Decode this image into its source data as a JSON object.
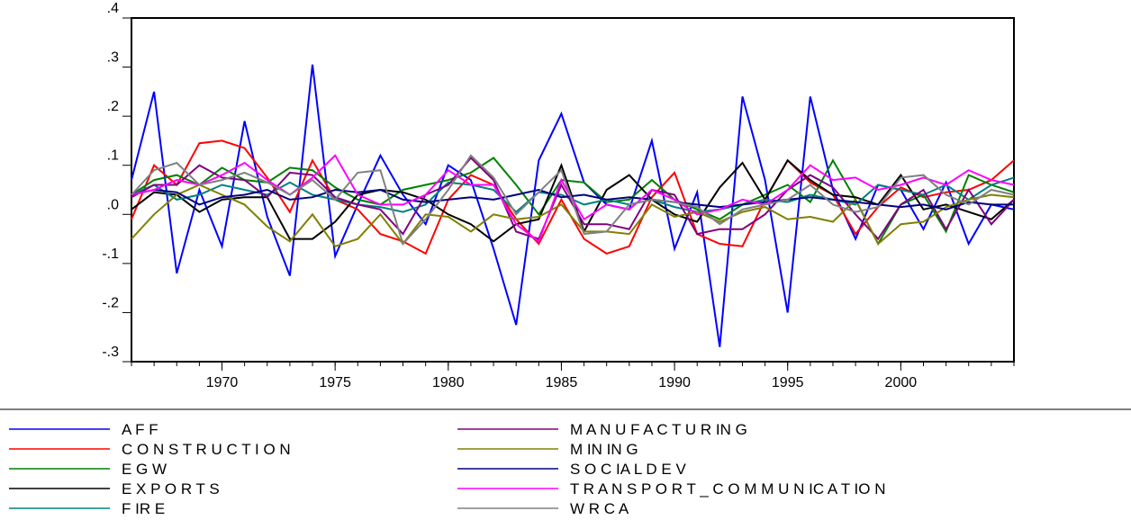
{
  "chart_data": {
    "type": "line",
    "title": "",
    "xlabel": "",
    "ylabel": "",
    "xlim": [
      1966,
      2005
    ],
    "ylim": [
      -0.3,
      0.4
    ],
    "y_ticks": [
      {
        "value": 0.4,
        "label": ".4"
      },
      {
        "value": 0.3,
        "label": ".3"
      },
      {
        "value": 0.2,
        "label": ".2"
      },
      {
        "value": 0.1,
        "label": ".1"
      },
      {
        "value": 0.0,
        "label": ".0"
      },
      {
        "value": -0.1,
        "label": "-.1"
      },
      {
        "value": -0.2,
        "label": "-.2"
      },
      {
        "value": -0.3,
        "label": "-.3"
      }
    ],
    "x_ticks": [
      {
        "value": 1970,
        "label": "1970"
      },
      {
        "value": 1975,
        "label": "1975"
      },
      {
        "value": 1980,
        "label": "1980"
      },
      {
        "value": 1985,
        "label": "1985"
      },
      {
        "value": 1990,
        "label": "1990"
      },
      {
        "value": 1995,
        "label": "1995"
      },
      {
        "value": 2000,
        "label": "2000"
      }
    ],
    "grid": false,
    "legend_position": "bottom",
    "legend_columns": 2,
    "x": [
      1966,
      1967,
      1968,
      1969,
      1970,
      1971,
      1972,
      1973,
      1974,
      1975,
      1976,
      1977,
      1978,
      1979,
      1980,
      1981,
      1982,
      1983,
      1984,
      1985,
      1986,
      1987,
      1988,
      1989,
      1990,
      1991,
      1992,
      1993,
      1994,
      1995,
      1996,
      1997,
      1998,
      1999,
      2000,
      2001,
      2002,
      2003,
      2004,
      2005
    ],
    "series": [
      {
        "name": "A F F",
        "color": "#0000ff",
        "values": [
          0.07,
          0.25,
          -0.12,
          0.05,
          -0.065,
          0.19,
          -0.005,
          -0.125,
          0.305,
          -0.085,
          0.02,
          0.12,
          0.04,
          -0.02,
          0.1,
          0.07,
          -0.07,
          -0.225,
          0.11,
          0.205,
          0.065,
          0.02,
          0.01,
          0.15,
          -0.07,
          0.045,
          -0.27,
          0.24,
          0.07,
          -0.2,
          0.24,
          0.05,
          -0.05,
          0.06,
          0.05,
          -0.03,
          0.065,
          -0.06,
          0.02,
          0.01
        ]
      },
      {
        "name": "C O N S T R U C T I O N",
        "color": "#ff0000",
        "values": [
          -0.01,
          0.1,
          0.06,
          0.145,
          0.15,
          0.135,
          0.075,
          0.005,
          0.11,
          0.03,
          0.01,
          -0.04,
          -0.055,
          -0.08,
          0.03,
          0.08,
          0.06,
          -0.01,
          -0.06,
          0.03,
          -0.05,
          -0.08,
          -0.065,
          0.035,
          0.085,
          -0.04,
          -0.06,
          -0.065,
          0.03,
          0.11,
          0.065,
          0.04,
          -0.04,
          0.015,
          0.055,
          0.035,
          0.045,
          0.05,
          0.07,
          0.11
        ]
      },
      {
        "name": "E G W",
        "color": "#008000",
        "values": [
          0.04,
          0.07,
          0.08,
          0.06,
          0.095,
          0.07,
          0.065,
          0.095,
          0.09,
          0.055,
          0.03,
          0.02,
          0.05,
          0.06,
          0.07,
          0.085,
          0.115,
          0.06,
          0.0,
          0.07,
          0.065,
          0.025,
          0.03,
          0.07,
          0.03,
          0.01,
          -0.01,
          0.02,
          0.04,
          0.06,
          0.025,
          0.11,
          0.03,
          -0.06,
          0.02,
          0.04,
          -0.035,
          0.08,
          0.06,
          0.045
        ]
      },
      {
        "name": "E X P O R T S",
        "color": "#000000",
        "values": [
          0.01,
          0.045,
          0.04,
          0.005,
          0.03,
          0.035,
          0.035,
          -0.05,
          -0.05,
          -0.015,
          0.04,
          0.05,
          0.045,
          0.03,
          0.0,
          -0.02,
          -0.055,
          -0.02,
          -0.01,
          0.1,
          -0.035,
          0.05,
          0.08,
          0.03,
          0.0,
          -0.015,
          0.055,
          0.105,
          0.03,
          0.11,
          0.07,
          0.04,
          0.035,
          0.02,
          0.08,
          0.01,
          0.02,
          0.005,
          -0.01,
          0.03
        ]
      },
      {
        "name": "F IR E",
        "color": "#008080",
        "values": [
          0.04,
          0.06,
          0.03,
          0.04,
          0.06,
          0.05,
          0.04,
          0.065,
          0.04,
          0.03,
          0.02,
          0.015,
          0.005,
          0.02,
          0.065,
          0.06,
          0.05,
          0.005,
          0.045,
          0.04,
          0.02,
          0.03,
          0.02,
          0.03,
          0.015,
          0.005,
          0.01,
          0.02,
          0.03,
          0.025,
          0.04,
          0.03,
          0.02,
          0.06,
          0.05,
          0.04,
          0.06,
          0.03,
          0.06,
          0.075
        ]
      },
      {
        "name": "M A N U F A C T U R IN G",
        "color": "#800080",
        "values": [
          0.035,
          0.06,
          0.06,
          0.1,
          0.075,
          0.07,
          0.035,
          0.085,
          0.08,
          0.035,
          0.02,
          0.01,
          -0.04,
          0.04,
          0.06,
          0.115,
          0.07,
          -0.035,
          -0.05,
          0.06,
          -0.02,
          -0.02,
          -0.03,
          0.05,
          0.04,
          -0.04,
          -0.03,
          -0.03,
          0.0,
          0.05,
          0.08,
          0.055,
          0.0,
          -0.05,
          0.02,
          0.05,
          -0.03,
          0.05,
          -0.02,
          0.03
        ]
      },
      {
        "name": "M IN IN G",
        "color": "#808000",
        "values": [
          -0.05,
          0.0,
          0.04,
          0.06,
          0.04,
          0.02,
          -0.025,
          -0.055,
          0.0,
          -0.065,
          -0.05,
          0.0,
          -0.06,
          0.0,
          -0.005,
          -0.035,
          0.0,
          -0.01,
          -0.005,
          0.02,
          -0.035,
          -0.035,
          -0.04,
          0.02,
          -0.005,
          0.005,
          -0.015,
          0.005,
          0.015,
          -0.01,
          -0.005,
          -0.015,
          0.03,
          -0.06,
          -0.02,
          -0.015,
          0.015,
          0.03,
          0.04,
          0.035
        ]
      },
      {
        "name": "S O C IA L D E V",
        "color": "#000080",
        "values": [
          0.04,
          0.05,
          0.045,
          0.02,
          0.035,
          0.04,
          0.05,
          0.03,
          0.035,
          0.05,
          0.045,
          0.05,
          0.03,
          0.025,
          0.03,
          0.035,
          0.03,
          0.04,
          0.05,
          0.035,
          0.04,
          0.03,
          0.035,
          0.03,
          0.025,
          0.02,
          0.015,
          0.02,
          0.025,
          0.03,
          0.035,
          0.03,
          0.025,
          0.02,
          0.015,
          0.02,
          0.01,
          0.025,
          0.02,
          0.02
        ]
      },
      {
        "name": "T R A N S P O R T _ C O M M U N IC A T IO N",
        "color": "#ff00ff",
        "values": [
          0.04,
          0.05,
          0.07,
          0.06,
          0.08,
          0.105,
          0.07,
          0.04,
          0.075,
          0.12,
          0.04,
          0.02,
          0.02,
          0.04,
          0.09,
          0.06,
          0.06,
          -0.02,
          -0.055,
          0.07,
          -0.01,
          0.02,
          0.01,
          0.05,
          0.03,
          0.0,
          0.01,
          0.03,
          0.02,
          0.05,
          0.1,
          0.07,
          0.075,
          0.05,
          0.06,
          0.075,
          0.06,
          0.09,
          0.07,
          0.06
        ]
      },
      {
        "name": "W R C A",
        "color": "#808080",
        "values": [
          0.04,
          0.09,
          0.105,
          0.06,
          0.07,
          0.085,
          0.065,
          0.04,
          0.07,
          0.03,
          0.085,
          0.09,
          -0.06,
          -0.01,
          0.05,
          0.12,
          0.075,
          0.0,
          0.045,
          0.09,
          -0.04,
          -0.035,
          0.02,
          0.03,
          0.025,
          0.015,
          -0.02,
          0.01,
          0.02,
          0.03,
          0.06,
          0.02,
          0.005,
          0.015,
          0.075,
          0.08,
          0.04,
          0.02,
          0.05,
          0.04
        ]
      }
    ]
  }
}
